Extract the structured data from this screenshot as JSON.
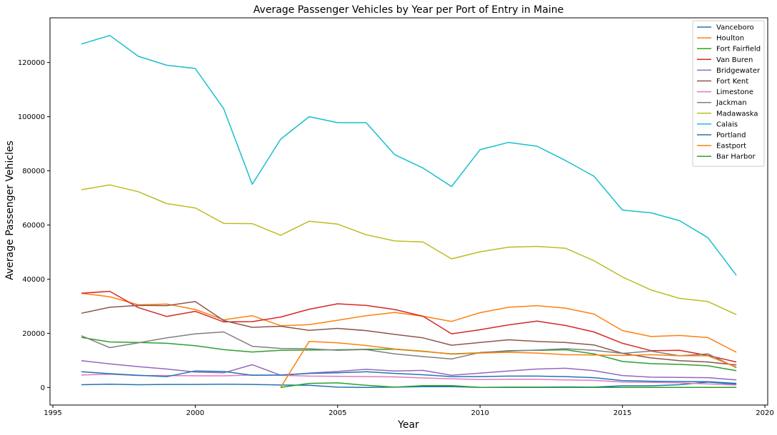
{
  "chart_data": {
    "type": "line",
    "title": "Average Passenger Vehicles by Year per Port of Entry in Maine",
    "xlabel": "Year",
    "ylabel": "Average Passenger Vehicles",
    "xlim": [
      1994.9,
      2020.1
    ],
    "ylim": [
      -6500,
      136500
    ],
    "xticks": [
      1995,
      2000,
      2005,
      2010,
      2015,
      2020
    ],
    "yticks": [
      0,
      20000,
      40000,
      60000,
      80000,
      100000,
      120000
    ],
    "grid": false,
    "legend_position": "top-right",
    "series": [
      {
        "name": "Vanceboro",
        "color": "#1f77b4",
        "x": [
          1996,
          1997,
          1998,
          1999,
          2000,
          2001,
          2002,
          2003,
          2004,
          2005,
          2006,
          2007,
          2008,
          2009,
          2010,
          2011,
          2012,
          2013,
          2014,
          2015,
          2016,
          2017,
          2018,
          2019
        ],
        "y": [
          1000,
          1200,
          1000,
          1100,
          1100,
          1200,
          1100,
          900,
          800,
          100,
          0,
          100,
          300,
          300,
          0,
          100,
          100,
          200,
          100,
          600,
          600,
          1000,
          2000,
          1200
        ]
      },
      {
        "name": "Houlton",
        "color": "#ff7f0e",
        "x": [
          1996,
          1997,
          1998,
          1999,
          2000,
          2001,
          2002,
          2003,
          2004,
          2005,
          2006,
          2007,
          2008,
          2009,
          2010,
          2011,
          2012,
          2013,
          2014,
          2015,
          2016,
          2017,
          2018,
          2019
        ],
        "y": [
          34800,
          33500,
          30500,
          30800,
          28800,
          25000,
          26500,
          22800,
          23200,
          24800,
          26500,
          27700,
          26300,
          24400,
          27600,
          29600,
          30200,
          29300,
          27100,
          21000,
          18800,
          19200,
          18400,
          13000
        ]
      },
      {
        "name": "Fort Fairfield",
        "color": "#2ca02c",
        "x": [
          1996,
          1997,
          1998,
          1999,
          2000,
          2001,
          2002,
          2003,
          2004,
          2005,
          2006,
          2007,
          2008,
          2009,
          2010,
          2011,
          2012,
          2013,
          2014,
          2015,
          2016,
          2017,
          2018,
          2019
        ],
        "y": [
          18500,
          16800,
          16600,
          16300,
          15400,
          14000,
          13100,
          13700,
          13800,
          13900,
          14100,
          14100,
          13300,
          12400,
          12800,
          13600,
          13700,
          13900,
          12400,
          9600,
          8800,
          8500,
          8000,
          6200
        ]
      },
      {
        "name": "Van Buren",
        "color": "#d62728",
        "x": [
          1996,
          1997,
          1998,
          1999,
          2000,
          2001,
          2002,
          2003,
          2004,
          2005,
          2006,
          2007,
          2008,
          2009,
          2010,
          2011,
          2012,
          2013,
          2014,
          2015,
          2016,
          2017,
          2018,
          2019
        ],
        "y": [
          34800,
          35500,
          29500,
          26200,
          28100,
          24200,
          24300,
          26000,
          28900,
          30900,
          30300,
          28800,
          26300,
          19800,
          21300,
          23100,
          24500,
          22900,
          20500,
          16300,
          13600,
          13700,
          11800,
          9400
        ]
      },
      {
        "name": "Bridgewater",
        "color": "#9467bd",
        "x": [
          1996,
          1997,
          1998,
          1999,
          2000,
          2001,
          2002,
          2003,
          2004,
          2005,
          2006,
          2007,
          2008,
          2009,
          2010,
          2011,
          2012,
          2013,
          2014,
          2015,
          2016,
          2017,
          2018,
          2019
        ],
        "y": [
          9900,
          8700,
          7700,
          6800,
          5700,
          5400,
          8400,
          4500,
          5300,
          5900,
          6700,
          6100,
          6300,
          4500,
          5300,
          6100,
          6800,
          7100,
          6200,
          4400,
          3800,
          3700,
          3600,
          2800
        ]
      },
      {
        "name": "Fort Kent",
        "color": "#8c564b",
        "x": [
          1996,
          1997,
          1998,
          1999,
          2000,
          2001,
          2002,
          2003,
          2004,
          2005,
          2006,
          2007,
          2008,
          2009,
          2010,
          2011,
          2012,
          2013,
          2014,
          2015,
          2016,
          2017,
          2018,
          2019
        ],
        "y": [
          27400,
          29600,
          30300,
          30200,
          31700,
          24700,
          22200,
          22600,
          21100,
          21800,
          21000,
          19600,
          18300,
          15600,
          16600,
          17600,
          17000,
          16600,
          15700,
          12600,
          10900,
          9900,
          9400,
          8300
        ]
      },
      {
        "name": "Limestone",
        "color": "#e377c2",
        "x": [
          1996,
          1997,
          1998,
          1999,
          2000,
          2001,
          2002,
          2003,
          2004,
          2005,
          2006,
          2007,
          2008,
          2009,
          2010,
          2011,
          2012,
          2013,
          2014,
          2015,
          2016,
          2017,
          2018,
          2019
        ],
        "y": [
          4600,
          4900,
          4400,
          4400,
          4300,
          4300,
          4600,
          4500,
          4200,
          4100,
          4000,
          3900,
          3500,
          3200,
          2900,
          3000,
          3000,
          2800,
          2600,
          2000,
          1900,
          1700,
          1300,
          900
        ]
      },
      {
        "name": "Jackman",
        "color": "#7f7f7f",
        "x": [
          1996,
          1997,
          1998,
          1999,
          2000,
          2001,
          2002,
          2003,
          2004,
          2005,
          2006,
          2007,
          2008,
          2009,
          2010,
          2011,
          2012,
          2013,
          2014,
          2015,
          2016,
          2017,
          2018,
          2019
        ],
        "y": [
          19100,
          14700,
          16500,
          18300,
          19800,
          20500,
          15200,
          14400,
          14300,
          13700,
          14000,
          12400,
          11400,
          10500,
          12900,
          13400,
          13800,
          14300,
          13700,
          12600,
          13400,
          11700,
          12400,
          7300
        ]
      },
      {
        "name": "Madawaska",
        "color": "#bcbd22",
        "x": [
          1996,
          1997,
          1998,
          1999,
          2000,
          2001,
          2002,
          2003,
          2004,
          2005,
          2006,
          2007,
          2008,
          2009,
          2010,
          2011,
          2012,
          2013,
          2014,
          2015,
          2016,
          2017,
          2018,
          2019
        ],
        "y": [
          73000,
          74800,
          72300,
          67900,
          66300,
          60600,
          60500,
          56200,
          61400,
          60300,
          56400,
          54100,
          53700,
          47500,
          50100,
          51800,
          52100,
          51400,
          46800,
          40800,
          36000,
          32900,
          31700,
          26900
        ]
      },
      {
        "name": "Calais",
        "color": "#17becf",
        "x": [
          1996,
          1997,
          1998,
          1999,
          2000,
          2001,
          2002,
          2003,
          2004,
          2005,
          2006,
          2007,
          2008,
          2009,
          2010,
          2011,
          2012,
          2013,
          2014,
          2015,
          2016,
          2017,
          2018,
          2019
        ],
        "y": [
          126800,
          130000,
          122300,
          119000,
          117800,
          102900,
          75000,
          91700,
          100000,
          97800,
          97800,
          86000,
          81000,
          74200,
          87800,
          90500,
          89100,
          83800,
          78000,
          65500,
          64500,
          61600,
          55300,
          41400
        ]
      },
      {
        "name": "Portland",
        "color": "#1f77b4",
        "x": [
          1996,
          1997,
          1998,
          1999,
          2000,
          2001,
          2002,
          2003,
          2004,
          2005,
          2006,
          2007,
          2008,
          2009,
          2010,
          2011,
          2012,
          2013,
          2014,
          2015,
          2016,
          2017,
          2018,
          2019
        ],
        "y": [
          5800,
          5100,
          4500,
          4000,
          6100,
          5900,
          4500,
          4600,
          5200,
          5400,
          5800,
          5200,
          4700,
          4000,
          4000,
          4200,
          4200,
          4000,
          3600,
          2500,
          2300,
          2200,
          2100,
          1500
        ]
      },
      {
        "name": "Eastport",
        "color": "#ff7f0e",
        "x": [
          2003,
          2004,
          2005,
          2006,
          2007,
          2008,
          2009,
          2010,
          2011,
          2012,
          2013,
          2014,
          2015,
          2016,
          2017,
          2018,
          2019
        ],
        "y": [
          0,
          17000,
          16500,
          15500,
          14200,
          13400,
          12300,
          12700,
          13000,
          12700,
          12100,
          12000,
          11800,
          12100,
          11700,
          11700,
          7500
        ]
      },
      {
        "name": "Bar Harbor",
        "color": "#2ca02c",
        "x": [
          2003,
          2004,
          2005,
          2006,
          2007,
          2008,
          2009,
          2010,
          2011,
          2012,
          2013,
          2014,
          2015,
          2016,
          2017,
          2018,
          2019
        ],
        "y": [
          0,
          1500,
          1700,
          800,
          100,
          700,
          700,
          0,
          0,
          0,
          0,
          0,
          0,
          0,
          0,
          0,
          0
        ]
      }
    ]
  }
}
